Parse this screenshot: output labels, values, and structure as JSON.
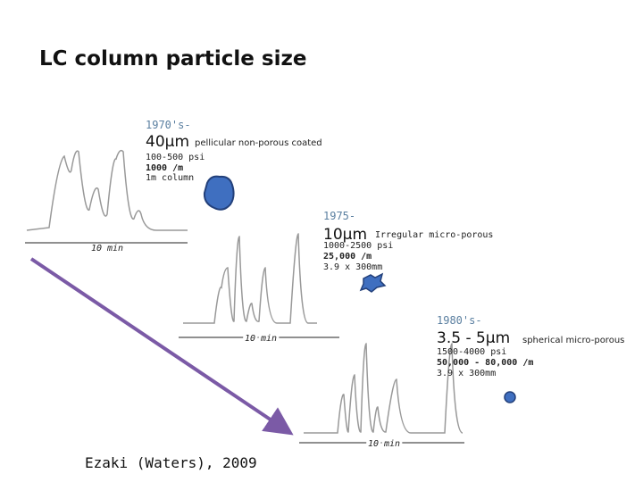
{
  "title": "LC column particle size",
  "panels": [
    {
      "era": "1970's-",
      "size": "40µm",
      "description": "pellicular non-porous coated",
      "pressure": "100-500 psi",
      "plates": "1000 /m",
      "column": "1m  column",
      "time_label": "10 min"
    },
    {
      "era": "1975-",
      "size": "10µm",
      "description": "Irregular micro-porous",
      "pressure": "1000-2500 psi",
      "plates": "25,000 /m",
      "column": "3.9 x 300mm",
      "time_label": "10 min"
    },
    {
      "era": "1980's-",
      "size": "3.5 - 5µm",
      "description": "spherical micro-porous",
      "pressure": "1500-4000 psi",
      "plates": "50,000 - 80,000 /m",
      "column": "3.9 x 300mm",
      "time_label": "10 min"
    }
  ],
  "citation": "Ezaki (Waters), 2009"
}
